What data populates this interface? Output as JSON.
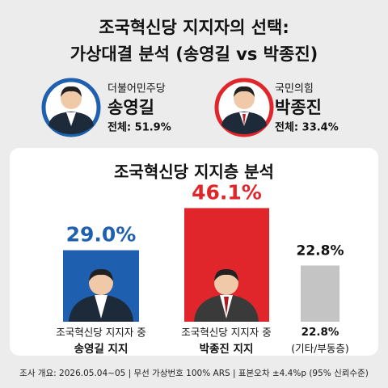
{
  "header": {
    "title_line1": "조국혁신당 지지자의 선택:",
    "title_line2": "가상대결 분석 (송영길 vs 박종진)"
  },
  "candidates": [
    {
      "party": "더불어민주당",
      "name": "송영길",
      "total": "전체: 51.9%"
    },
    {
      "party": "국민의힘",
      "name": "박종진",
      "total": "전체: 33.4%"
    }
  ],
  "chart_data": {
    "type": "bar",
    "title": "조국혁신당 지지층 분석",
    "categories": [
      [
        "조국혁신당 지지자 중",
        "송영길 지지"
      ],
      [
        "조국혁신당 지지자 중",
        "박종진 지지"
      ],
      [
        "(기타/부동층)"
      ]
    ],
    "values": [
      29.0,
      46.1,
      22.8
    ],
    "value_labels": [
      "29.0%",
      "46.1%",
      "22.8%"
    ],
    "colors": [
      "#1f5fb0",
      "#e0262b",
      "#c4c4c4"
    ]
  },
  "footer": "조사 개요: 2026.05.04~05 | 무선 가상번호 100% ARS | 표본오차 ±4.4%p (95% 신뢰수준)"
}
